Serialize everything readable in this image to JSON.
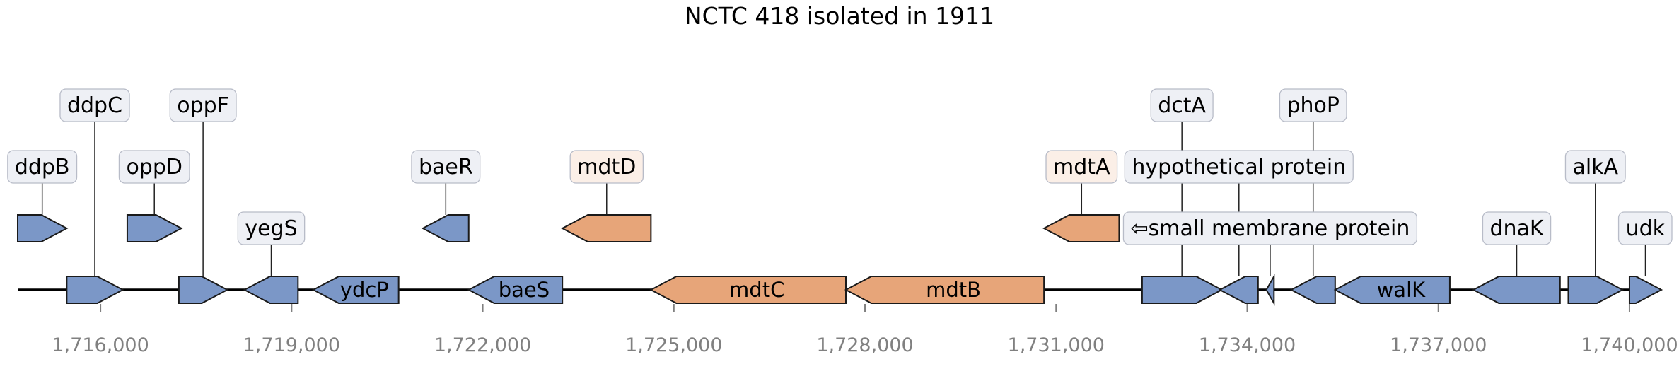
{
  "title": "NCTC 418 isolated in 1911",
  "colors": {
    "default_gene": "#7b97c7",
    "highlight_gene": "#e7a579",
    "default_label_bg": "#eef0f5",
    "highlight_label_bg": "#fbefe7"
  },
  "axis": {
    "xlim": [
      1714700,
      1740500
    ],
    "ticks": [
      {
        "value": 1716000,
        "label": "1,716,000"
      },
      {
        "value": 1719000,
        "label": "1,719,000"
      },
      {
        "value": 1722000,
        "label": "1,722,000"
      },
      {
        "value": 1725000,
        "label": "1,725,000"
      },
      {
        "value": 1728000,
        "label": "1,728,000"
      },
      {
        "value": 1731000,
        "label": "1,731,000"
      },
      {
        "value": 1734000,
        "label": "1,734,000"
      },
      {
        "value": 1737000,
        "label": "1,737,000"
      },
      {
        "value": 1740000,
        "label": "1,740,000"
      }
    ]
  },
  "genes": [
    {
      "start": 1714700,
      "end": 1715470,
      "strand": 1,
      "level": 1,
      "label": "ddpB",
      "label_level": 2,
      "highlight": false
    },
    {
      "start": 1715470,
      "end": 1716350,
      "strand": 1,
      "level": 0,
      "label": "ddpC",
      "label_level": 3,
      "highlight": false
    },
    {
      "start": 1716420,
      "end": 1717270,
      "strand": 1,
      "level": 1,
      "label": "oppD",
      "label_level": 2,
      "highlight": false
    },
    {
      "start": 1717230,
      "end": 1717990,
      "strand": 1,
      "level": 0,
      "label": "oppF",
      "label_level": 3,
      "highlight": false
    },
    {
      "start": 1718260,
      "end": 1719100,
      "strand": -1,
      "level": 0,
      "label": "yegS",
      "label_level": 1,
      "highlight": false
    },
    {
      "start": 1719340,
      "end": 1720680,
      "strand": -1,
      "level": 0,
      "label": "ydcP",
      "label_level": null,
      "highlight": false
    },
    {
      "start": 1721060,
      "end": 1721780,
      "strand": -1,
      "level": 1,
      "label": "baeR",
      "label_level": 2,
      "highlight": false
    },
    {
      "start": 1721780,
      "end": 1723250,
      "strand": -1,
      "level": 0,
      "label": "baeS",
      "label_level": null,
      "highlight": false
    },
    {
      "start": 1723250,
      "end": 1724640,
      "strand": -1,
      "level": 1,
      "label": "mdtD",
      "label_level": 2,
      "highlight": true
    },
    {
      "start": 1724640,
      "end": 1727700,
      "strand": -1,
      "level": 0,
      "label": "mdtC",
      "label_level": null,
      "highlight": true
    },
    {
      "start": 1727700,
      "end": 1730810,
      "strand": -1,
      "level": 0,
      "label": "mdtB",
      "label_level": null,
      "highlight": true
    },
    {
      "start": 1730810,
      "end": 1731990,
      "strand": -1,
      "level": 1,
      "label": "mdtA",
      "label_level": 2,
      "highlight": true
    },
    {
      "start": 1732350,
      "end": 1733600,
      "strand": 1,
      "level": 0,
      "label": "dctA",
      "label_level": 3,
      "highlight": false
    },
    {
      "start": 1733570,
      "end": 1734170,
      "strand": -1,
      "level": 0,
      "label": "hypothetical protein",
      "label_level": 2,
      "highlight": false
    },
    {
      "start": 1734300,
      "end": 1734420,
      "strand": -1,
      "level": 0,
      "label": "⇦small membrane protein",
      "label_level": 1,
      "highlight": false
    },
    {
      "start": 1734690,
      "end": 1735380,
      "strand": -1,
      "level": 0,
      "label": "phoP",
      "label_level": 3,
      "highlight": false
    },
    {
      "start": 1735380,
      "end": 1737180,
      "strand": -1,
      "level": 0,
      "label": "walK",
      "label_level": null,
      "highlight": false
    },
    {
      "start": 1737550,
      "end": 1738910,
      "strand": -1,
      "level": 0,
      "label": "dnaK",
      "label_level": 1,
      "highlight": false
    },
    {
      "start": 1739040,
      "end": 1739890,
      "strand": 1,
      "level": 0,
      "label": "alkA",
      "label_level": 2,
      "highlight": false
    },
    {
      "start": 1740000,
      "end": 1740500,
      "strand": 1,
      "level": 0,
      "label": "udk",
      "label_level": 1,
      "highlight": false
    }
  ]
}
